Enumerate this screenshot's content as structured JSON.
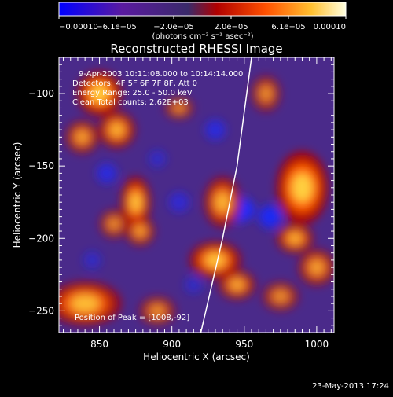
{
  "colorbar": {
    "tick_labels": [
      "−0.00010",
      "−6.1e−05",
      "−2.0e−05",
      "2.0e−05",
      "6.1e−05",
      "0.00010"
    ],
    "units_label": "(photons cm⁻² s⁻¹ asec⁻²)",
    "min": -0.0001,
    "max": 0.0001,
    "colors": [
      "#0000ff",
      "#5a1aa0",
      "#3a2a6a",
      "#b00000",
      "#ff5000",
      "#ffc030",
      "#ffffe0"
    ]
  },
  "chart_data": {
    "type": "heatmap",
    "title": "Reconstructed RHESSI Image",
    "xlabel": "Heliocentric X (arcsec)",
    "ylabel": "Heliocentric Y (arcsec)",
    "xlim": [
      822,
      1012
    ],
    "ylim": [
      -265,
      -75
    ],
    "x_ticks": [
      850,
      900,
      950,
      1000
    ],
    "y_ticks": [
      -100,
      -150,
      -200,
      -250
    ],
    "annotations": [
      "9-Apr-2003 10:11:08.000 to 10:14:14.000",
      "Detectors: 4F 5F 6F 7F 8F, Att 0",
      "Energy Range: 25.0 - 50.0 keV",
      "Clean    Total counts: 2.62E+03"
    ],
    "peak_label": "Position of Peak = [1008,-92]",
    "peak": [
      1008,
      -92
    ],
    "limb_curve": [
      [
        920,
        -265
      ],
      [
        935,
        -200
      ],
      [
        945,
        -150
      ],
      [
        955,
        -75
      ]
    ],
    "hot_regions": [
      {
        "x": 850,
        "y": -100,
        "sx": 12,
        "sy": 12,
        "a": 1.0
      },
      {
        "x": 862,
        "y": -125,
        "sx": 10,
        "sy": 10,
        "a": 0.8
      },
      {
        "x": 838,
        "y": -130,
        "sx": 9,
        "sy": 9,
        "a": 0.7
      },
      {
        "x": 905,
        "y": -110,
        "sx": 8,
        "sy": 6,
        "a": 0.6
      },
      {
        "x": 875,
        "y": -175,
        "sx": 8,
        "sy": 14,
        "a": 0.9
      },
      {
        "x": 860,
        "y": -190,
        "sx": 8,
        "sy": 8,
        "a": 0.6
      },
      {
        "x": 878,
        "y": -195,
        "sx": 8,
        "sy": 8,
        "a": 0.7
      },
      {
        "x": 840,
        "y": -245,
        "sx": 20,
        "sy": 12,
        "a": 0.85
      },
      {
        "x": 890,
        "y": -250,
        "sx": 10,
        "sy": 8,
        "a": 0.6
      },
      {
        "x": 935,
        "y": -175,
        "sx": 10,
        "sy": 14,
        "a": 0.8
      },
      {
        "x": 930,
        "y": -215,
        "sx": 14,
        "sy": 10,
        "a": 0.9
      },
      {
        "x": 945,
        "y": -232,
        "sx": 10,
        "sy": 8,
        "a": 0.75
      },
      {
        "x": 965,
        "y": -100,
        "sx": 8,
        "sy": 10,
        "a": 0.6
      },
      {
        "x": 990,
        "y": -165,
        "sx": 14,
        "sy": 20,
        "a": 1.0
      },
      {
        "x": 985,
        "y": -200,
        "sx": 10,
        "sy": 8,
        "a": 0.8
      },
      {
        "x": 1000,
        "y": -220,
        "sx": 10,
        "sy": 10,
        "a": 0.7
      },
      {
        "x": 975,
        "y": -240,
        "sx": 10,
        "sy": 8,
        "a": 0.6
      }
    ],
    "cold_regions": [
      {
        "x": 945,
        "y": -180,
        "sx": 12,
        "sy": 9,
        "a": 1.0
      },
      {
        "x": 968,
        "y": -185,
        "sx": 8,
        "sy": 8,
        "a": 0.9
      },
      {
        "x": 855,
        "y": -155,
        "sx": 7,
        "sy": 7,
        "a": 0.7
      },
      {
        "x": 930,
        "y": -125,
        "sx": 7,
        "sy": 7,
        "a": 0.7
      },
      {
        "x": 905,
        "y": -175,
        "sx": 7,
        "sy": 7,
        "a": 0.6
      },
      {
        "x": 890,
        "y": -145,
        "sx": 6,
        "sy": 6,
        "a": 0.5
      },
      {
        "x": 845,
        "y": -215,
        "sx": 6,
        "sy": 6,
        "a": 0.5
      },
      {
        "x": 915,
        "y": -232,
        "sx": 6,
        "sy": 6,
        "a": 0.5
      }
    ]
  },
  "footer_date": "23-May-2013 17:24"
}
